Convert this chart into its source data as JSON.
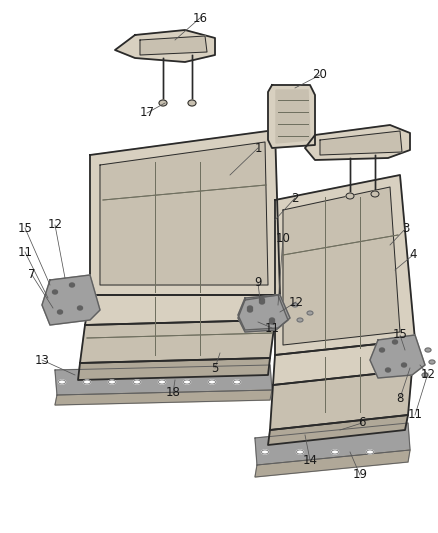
{
  "background_color": "#ffffff",
  "seat_fill": "#d8d0c0",
  "seat_fill2": "#c8c0b0",
  "seat_dark": "#707060",
  "seat_outline": "#2a2a2a",
  "seat_mid": "#b0a898",
  "metal_fill": "#a0a0a0",
  "metal_dark": "#606060",
  "callout_fontsize": 8.5,
  "callout_color": "#1a1a1a",
  "line_color": "#555555",
  "lw_main": 1.3,
  "lw_detail": 0.7,
  "lw_callout": 0.55
}
